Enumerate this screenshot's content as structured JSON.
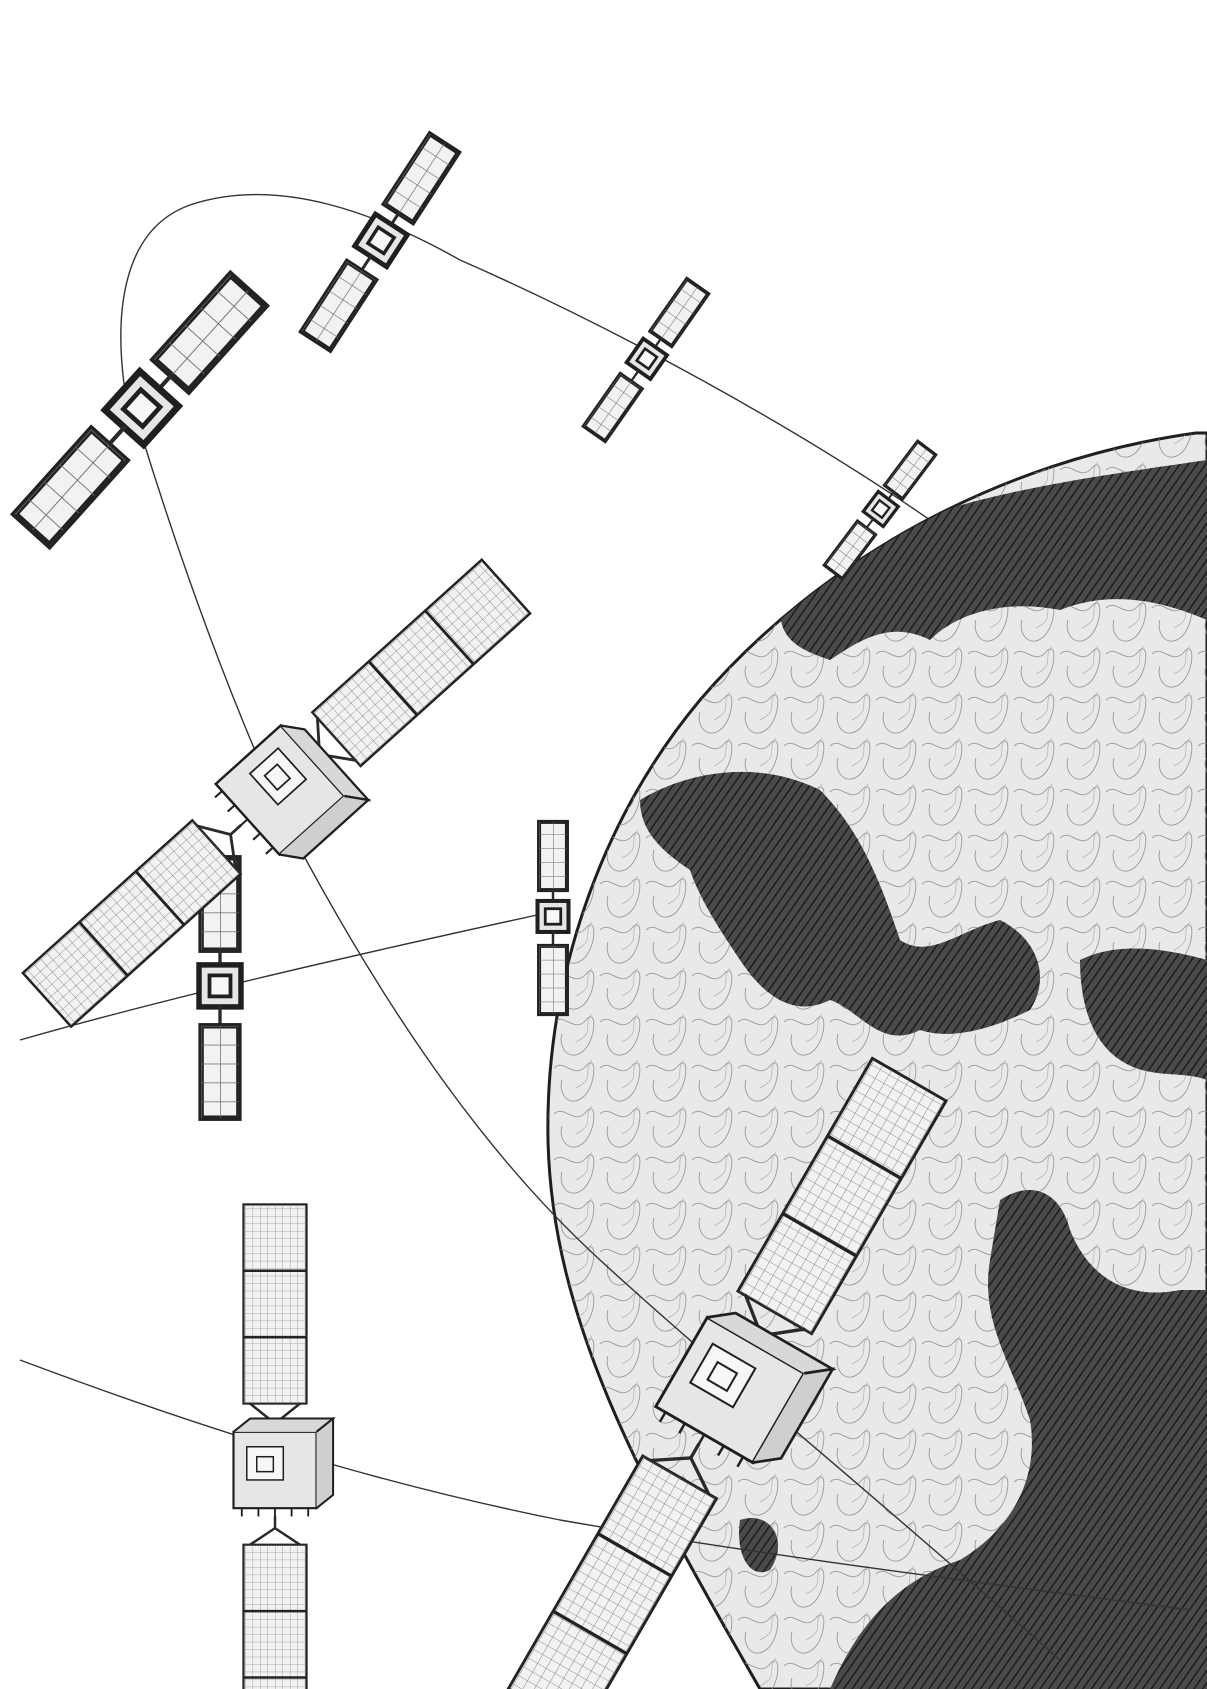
{
  "scene": {
    "background": "#ffffff",
    "ink": "#2a2a2a",
    "land_shade": "#3a3a3a",
    "ocean_shade": "#bdbdbd"
  }
}
